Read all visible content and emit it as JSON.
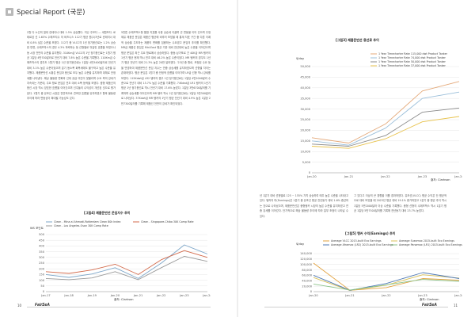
{
  "header": {
    "title": "Special Report (국문)"
  },
  "footer": {
    "left_page": "10",
    "right_page": "11",
    "brand_left": "FairSeA",
    "brand_right": "FairSeA"
  },
  "text": {
    "left_col1": "2월 다 노선의 절대 컨테이너 대비 1.5% 상승했다. 지난 주보다 — 세월보다. 로테르담 선 1.65% 수에즈지수 저 비즈니스 112기 평균 원(2)3년로 컨테이너 대비 0.8% 낮은 수준을 보였다. 112기 중 VLCC의 1년 정기용선료는 1.2% 상승한 반면, 수에즈막스의 경우 4.3% 하락하는 등 선형별로 엇갈린 흐름을 보였으나 동 시장 전반의 수준을 유지했다. 310Km급 VLCC의 1년 정기용선료는 1월기 평균 1일당 4만700달러로 전년기 대비 7.8% 높은 수준을 기록했다. 110Km급 수에즈막스의 경우도 1월기 평균 1년 정기용선료는 1일당 4만3400달러로 전년기 대비 3.1% 높은 수준이었으며 분기 동소폭 회복세에도 불구하고 높은 수준을 유지했다. 제품운반선 시황은 운임과 용선료 모두 높은 수준을 유지하며 대체로 안정세를 나타냈다. 해상 물동량 변화와 선대 공급 여건이 맞물리며 수요 측의 강세가 지속되는 가운데, 주요 항로 운임은 연초 대비 소폭 등락을 보였다. 중형 제품선의 용선 시장 역시 양호한 흐름을 이어갔으며 선주들의 수익성이 개선된 것으로 평가된다. 1월기 중 유조선 시장은 전반적으로 견조한 흐름을 유지하였고 향후 물동량 추이에 따라 변동성이 확대될 가능성도 있다.",
    "left_col2": "5만톤 수에즈맥스형 통합 지표를 사용 상승세 이끌며 큰 변동을 이어 갔으며 주정제유 제품선 운임은 제품선 평균에 비추어 보았을 때 통계 지표 구간 중 다른 이례적 상승을 주도하는 제품의 변화를 집중하는 수요였고 운임의 추이를 확인했다. MR급 제품선 운임은 Mid-East 평균 기준 대비 전년대비 높은 수준을 이어갔으며 평균 운임은 최근 주요 항로에서 상승하였다. 중동-싱가포르 간 40K급 MR 탱커의 1년기 평균 현재 역시 연초 대비 46.2% 높은 수준이었다. MR 탱커의 경우도 1년기 평균 전년기 대비 21.3% 높은 20만 달러였다. '23년 중 항로, 조정된 수요 등을 반영하여 제품운반선 운임 지수는 연중 상승세를 유지하였으며 선형별 차이는 존재하였다. 평균 운임은 1월기 중 안정적 흐름을 이어가며 LR급 선형 역시 강세를 보였다. 115Kdwt급 LR2 탱커의 경우 1년 정기용선료는 1일당 4만2000달러 수준으로 전년기 대비 15.7% 높은 수준을 기록했다. 74Kdwt급 LR1 탱커의 1년기 평균 1년 정기용선료 역시 전년기 대비 17.6% 높았다. 1일당 3만6700달러를 기록하며 상승세를 이어갔으며 MR 탱커 역시 2년 정기용선료는 1일당 3만300달러로 나타났다. 37Kdwt급 MR 탱커의 1년기 평균 전년기 대비 4.9% 높은 1일당 2만7300달러를 기록해 제품선 전반의 강세가 확인되었다.",
    "right_col1": "년 1분기 대비 선형별로 125 ~ 155% 가치 상승하여 매우 높은 수준을 나타내고 있다. 탱커의 미(Earnings)은 1분기 중 유조선 평균 전년동기 대비 1.6% 증감하는 것으로 나타났으며, 제품운반선은 중형탱커 시장의 높은 수준을 유지하였고 연중 강세를 이어갔다. 단기적으로 해상 물동량 추이에 따라 일부 조정이 나타날 수 있다.",
    "right_col2": "그 있다고 이상의 큰 경향을 이를 경과하였다. 유조선(VLCC) 평균 수익은 단 평균적으로 대비 보았을 때 2023년 평균 대비 19.1% 증가하였고 1분기 중 평균 추이 역시 1일당 5만2000달러 이상 수준을 기록했다. 중형 선형의 수에즈맥스 역시 1분기 평균 1일당 5만7500달러를 기록해 전년동기 대비 23.7% 높았다."
  },
  "chart1": {
    "title": "[그림3] 제품운반선 용선료 추이",
    "unit": "$/day",
    "source": "출처: Clarkson",
    "chart_data": {
      "type": "line",
      "x": [
        "Jan-20",
        "Jan-21",
        "Jan-22",
        "Jan-23",
        "Jan-24"
      ],
      "ylim": [
        0,
        50000
      ],
      "yticks": [
        "0",
        "5,000",
        "10,000",
        "15,000",
        "20,000",
        "25,000",
        "30,000",
        "35,000",
        "40,000",
        "45,000",
        "50,000"
      ],
      "grid": true,
      "legend_position": "top-right",
      "series": [
        {
          "name": "1 Year Timecharter Rate 115,000 dwt Product Tanker",
          "color": "#e4a97a",
          "values": [
            16500,
            14000,
            23000,
            38500,
            43000
          ]
        },
        {
          "name": "1 Year Timecharter Rate 74,000 dwt Product Tanker",
          "color": "#9bbfda",
          "values": [
            15000,
            13000,
            21000,
            35000,
            38000
          ]
        },
        {
          "name": "1 Year Timecharter Rate 50,000 dwt Product Tanker",
          "color": "#8a8a8a",
          "values": [
            13500,
            12500,
            17500,
            28500,
            30500
          ]
        },
        {
          "name": "1 Year Timecharter Rate 37,000 dwt Product Tanker",
          "color": "#e8c34d",
          "values": [
            12500,
            11500,
            16000,
            24000,
            26500
          ]
        }
      ]
    }
  },
  "chart2": {
    "title": "[그림4] 제품운반선 운임지수 추이",
    "unit": "WS 포인트",
    "source": "출처: Clarkson",
    "chart_data": {
      "type": "line",
      "x": [
        "Jan-17",
        "Jan-18",
        "Jan-19",
        "Jan-20",
        "Jan-21",
        "Jan-22",
        "Jan-23",
        "Jan-24"
      ],
      "ylim": [
        0,
        500
      ],
      "yticks": [
        "0",
        "50",
        "100",
        "150",
        "200",
        "250",
        "300",
        "350",
        "400",
        "450",
        "500"
      ],
      "grid": true,
      "legend_position": "top",
      "series": [
        {
          "name": "Clean - Mina al Ahmadi-Rotterdam Clean 80k Index",
          "color": "#7ea7c9",
          "values": [
            150,
            125,
            155,
            210,
            115,
            250,
            410,
            330
          ]
        },
        {
          "name": "Clean - Singapore-Chiba 30K Comp Rate",
          "color": "#d36b4c",
          "values": [
            175,
            160,
            190,
            240,
            150,
            280,
            360,
            300
          ]
        },
        {
          "name": "Clean - Los Angeles-Osan 30K Comp Rate",
          "color": "#9a9a9a",
          "values": [
            115,
            105,
            120,
            175,
            105,
            210,
            310,
            265
          ]
        }
      ]
    }
  },
  "chart3": {
    "title": "[그림5] 탱커 수익(Earnings) 추이",
    "unit": "$/day",
    "source": "출처: Clarkson",
    "chart_data": {
      "type": "line",
      "x": [
        "Jan-20",
        "Jan-21",
        "Jan-22",
        "Jan-23",
        "Jan-24"
      ],
      "ylim": [
        0,
        140000
      ],
      "yticks": [
        "0",
        "20,000",
        "40,000",
        "60,000",
        "80,000",
        "100,000",
        "120,000",
        "140,000"
      ],
      "grid": true,
      "legend_position": "top",
      "series": [
        {
          "name": "Average VLCC 2015-built Eco Earnings",
          "color": "#e2a13d",
          "values": [
            105000,
            5000,
            15000,
            48000,
            42000
          ]
        },
        {
          "name": "Average Suezmax 2015-built Eco Earnings",
          "color": "#d8c15a",
          "values": [
            52000,
            4000,
            24000,
            62000,
            50000
          ]
        },
        {
          "name": "Average Aframax (LR2) 2015-built Eco Earnings",
          "color": "#4f79b4",
          "values": [
            60000,
            5000,
            30000,
            70000,
            48000
          ]
        },
        {
          "name": "Average Panamax (LR1) 2015-built Eco Earnings",
          "color": "#8cc38a",
          "values": [
            28000,
            6000,
            25000,
            45000,
            38000
          ]
        }
      ]
    }
  }
}
